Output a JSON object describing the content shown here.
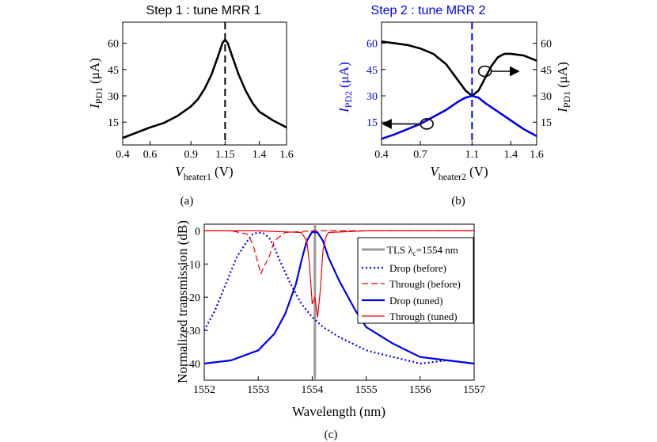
{
  "chart_data": [
    {
      "id": "a",
      "type": "line",
      "title": "Step 1 : tune MRR 1",
      "caption": "(a)",
      "xlabel": {
        "main": "V",
        "sub": "heater1",
        "unit": "(V)"
      },
      "ylabel": {
        "main": "I",
        "sub": "PD1",
        "unit": "(μA)"
      },
      "xlim": [
        0.4,
        1.6
      ],
      "ylim": [
        2,
        72
      ],
      "xticks": [
        0.4,
        0.6,
        0.9,
        1.15,
        1.4,
        1.6
      ],
      "xtick_labels": [
        "0.4",
        "0.6",
        "0.9",
        "1.15",
        "1.4",
        "1.6"
      ],
      "yticks": [
        15,
        30,
        45,
        60
      ],
      "marker_line_x": 1.15,
      "series": [
        {
          "name": "I_PD1",
          "color": "#000000",
          "x": [
            0.4,
            0.5,
            0.6,
            0.7,
            0.8,
            0.9,
            0.95,
            1.0,
            1.05,
            1.1,
            1.13,
            1.15,
            1.17,
            1.2,
            1.25,
            1.3,
            1.35,
            1.4,
            1.5,
            1.6
          ],
          "y": [
            6,
            9,
            12,
            14.5,
            18.5,
            24,
            28,
            34,
            42,
            53,
            60,
            62,
            60,
            53,
            42,
            33,
            26,
            21,
            16,
            12
          ]
        }
      ]
    },
    {
      "id": "b",
      "type": "line",
      "title": "Step 2 : tune MRR 2",
      "title_color": "#0000ee",
      "caption": "(b)",
      "xlabel": {
        "main": "V",
        "sub": "heater2",
        "unit": "(V)"
      },
      "ylabel_left": {
        "main": "I",
        "sub": "PD2",
        "unit": "(μA)",
        "color": "#0000ee"
      },
      "ylabel_right": {
        "main": "I",
        "sub": "PD1",
        "unit": "(μA)",
        "color": "#000000"
      },
      "xlim": [
        0.4,
        1.6
      ],
      "ylim": [
        2,
        72
      ],
      "xticks": [
        0.4,
        0.7,
        1.1,
        1.4,
        1.6
      ],
      "xtick_labels": [
        "0.4",
        "0.7",
        "1.1",
        "1.4",
        "1.6"
      ],
      "yticks": [
        15,
        30,
        45,
        60
      ],
      "marker_line_x": 1.1,
      "series": [
        {
          "name": "I_PD1",
          "axis": "right",
          "color": "#000000",
          "x": [
            0.4,
            0.5,
            0.6,
            0.7,
            0.8,
            0.9,
            0.95,
            1.0,
            1.05,
            1.1,
            1.15,
            1.2,
            1.25,
            1.3,
            1.35,
            1.4,
            1.5,
            1.6
          ],
          "y": [
            61,
            60,
            59,
            57,
            54,
            48,
            43,
            38,
            33,
            30,
            33,
            40,
            47,
            52,
            54,
            54,
            53,
            50
          ]
        },
        {
          "name": "I_PD2",
          "axis": "left",
          "color": "#0000ee",
          "x": [
            0.4,
            0.5,
            0.6,
            0.7,
            0.8,
            0.9,
            1.0,
            1.05,
            1.1,
            1.15,
            1.2,
            1.3,
            1.4,
            1.5,
            1.6
          ],
          "y": [
            5.5,
            8,
            11,
            14,
            18,
            22,
            27,
            29,
            30,
            29,
            26,
            21,
            16,
            11,
            7
          ]
        }
      ],
      "annotations": [
        {
          "circle_at": [
            0.75,
            14
          ],
          "arrow_to_x": 0.42,
          "arrow_y": 14,
          "meaning": "left axis"
        },
        {
          "circle_at": [
            1.2,
            44
          ],
          "arrow_to_x": 1.45,
          "arrow_y": 44,
          "meaning": "right axis"
        }
      ]
    },
    {
      "id": "c",
      "type": "line",
      "caption": "(c)",
      "xlabel": "Wavelength (nm)",
      "ylabel": "Normalized transmission (dB)",
      "xlim": [
        1552,
        1557
      ],
      "ylim": [
        -45,
        2
      ],
      "xticks": [
        1552,
        1553,
        1554,
        1555,
        1556,
        1557
      ],
      "yticks": [
        0,
        -10,
        -20,
        -30,
        -40
      ],
      "legend_position": "top-right",
      "tls_line": {
        "label": "TLS λ",
        "label_sub": "c",
        "label_rest": "=1554 nm",
        "x": 1554.05,
        "color": "#999999"
      },
      "series": [
        {
          "name": "Drop (before)",
          "color": "#0000ee",
          "style": "dotted",
          "x": [
            1552,
            1552.2,
            1552.4,
            1552.6,
            1552.8,
            1552.9,
            1553.0,
            1553.1,
            1553.2,
            1553.3,
            1553.4,
            1553.6,
            1553.8,
            1554.0,
            1554.2,
            1554.5,
            1555.0,
            1555.5,
            1556.0,
            1556.5,
            1557
          ],
          "y": [
            -30,
            -24,
            -16,
            -8,
            -3,
            -1,
            -0.5,
            -0.8,
            -2,
            -5,
            -9,
            -16,
            -22,
            -26,
            -29,
            -32,
            -36,
            -38,
            -40,
            -39,
            -40
          ]
        },
        {
          "name": "Through (before)",
          "color": "#ee0000",
          "style": "dashed",
          "x": [
            1552,
            1552.5,
            1552.8,
            1552.9,
            1553.0,
            1553.05,
            1553.1,
            1553.2,
            1553.3,
            1553.5,
            1554,
            1555,
            1556,
            1557
          ],
          "y": [
            0,
            0,
            -1,
            -4,
            -10,
            -13,
            -11,
            -8,
            -3,
            -0.5,
            0,
            0,
            0,
            0
          ]
        },
        {
          "name": "Drop (tuned)",
          "color": "#0000ee",
          "style": "solid",
          "x": [
            1552,
            1552.5,
            1553.0,
            1553.3,
            1553.5,
            1553.7,
            1553.8,
            1553.9,
            1554.0,
            1554.1,
            1554.2,
            1554.3,
            1554.5,
            1554.8,
            1555.0,
            1555.5,
            1556.0,
            1556.5,
            1557
          ],
          "y": [
            -40,
            -39,
            -36,
            -31,
            -25,
            -16,
            -9,
            -3,
            -0.3,
            -0.5,
            -3,
            -8,
            -15,
            -24,
            -29,
            -34,
            -38,
            -39,
            -40
          ]
        },
        {
          "name": "Through (tuned)",
          "color": "#ee0000",
          "style": "solid",
          "x": [
            1552,
            1553,
            1553.8,
            1553.9,
            1553.95,
            1554.0,
            1554.05,
            1554.1,
            1554.15,
            1554.2,
            1554.25,
            1554.3,
            1555,
            1556,
            1557
          ],
          "y": [
            0,
            0,
            -0.5,
            -3,
            -10,
            -22,
            -20,
            -26,
            -18,
            -6,
            -2,
            -0.5,
            0,
            0,
            0
          ]
        }
      ]
    }
  ]
}
